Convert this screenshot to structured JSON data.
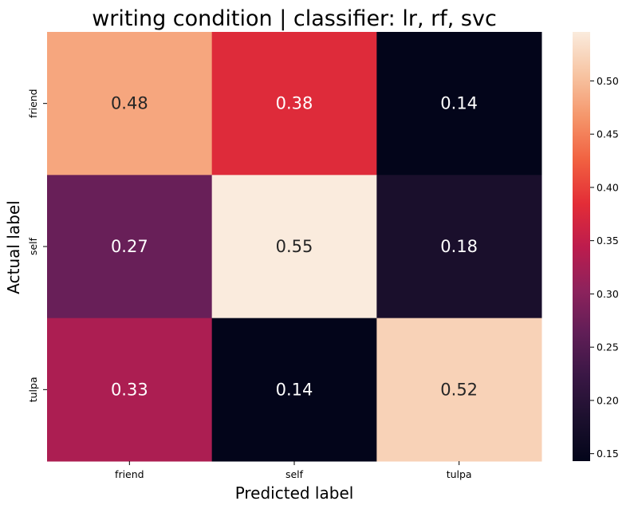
{
  "chart_data": {
    "type": "heatmap",
    "title": "writing condition | classifier: lr, rf, svc",
    "xlabel": "Predicted label",
    "ylabel": "Actual label",
    "x_categories": [
      "friend",
      "self",
      "tulpa"
    ],
    "y_categories": [
      "friend",
      "self",
      "tulpa"
    ],
    "values": [
      [
        0.48,
        0.38,
        0.14
      ],
      [
        0.27,
        0.55,
        0.18
      ],
      [
        0.33,
        0.14,
        0.52
      ]
    ],
    "colormap": "rocket",
    "colorbar": {
      "range": [
        0.143,
        0.546
      ],
      "ticks": [
        "0.15",
        "0.20",
        "0.25",
        "0.30",
        "0.35",
        "0.40",
        "0.45",
        "0.50"
      ]
    },
    "grid": false,
    "legend": "colorbar-right"
  }
}
